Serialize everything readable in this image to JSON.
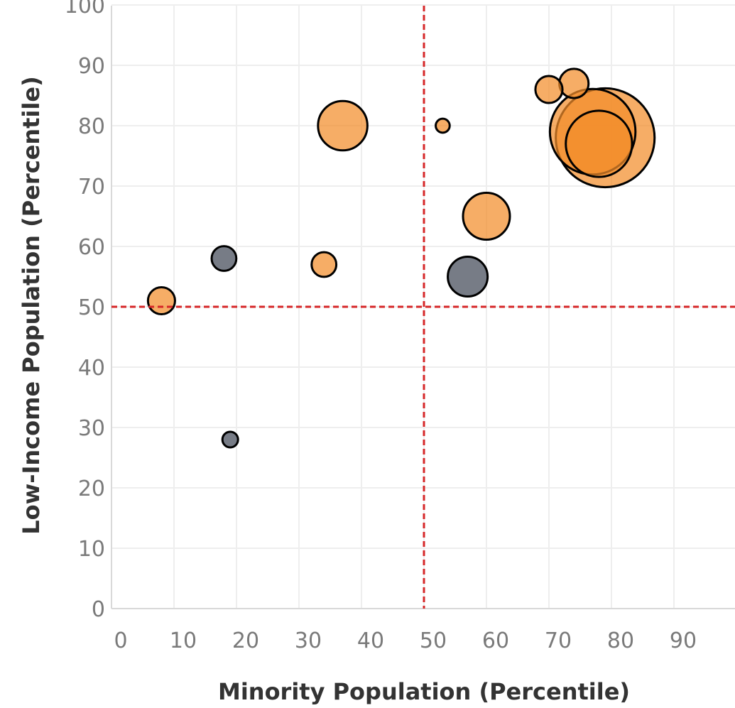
{
  "chart_data": {
    "type": "scatter",
    "title": "",
    "xlabel": "Minority Population (Percentile)",
    "ylabel": "Low-Income Population (Percentile)",
    "xlim": [
      0,
      100
    ],
    "ylim": [
      0,
      100
    ],
    "x_ticks": [
      0,
      10,
      20,
      30,
      40,
      50,
      60,
      70,
      80,
      90
    ],
    "y_ticks": [
      0,
      10,
      20,
      30,
      40,
      50,
      60,
      70,
      80,
      90,
      100
    ],
    "grid": true,
    "reference_lines": {
      "x": 50,
      "y": 50,
      "color": "#d62728",
      "style": "dashed"
    },
    "colors": {
      "orange": "#f28e2b",
      "gray": "#6b717c"
    },
    "points": [
      {
        "x": 8,
        "y": 51,
        "size": 3,
        "color": "orange"
      },
      {
        "x": 18,
        "y": 58,
        "size": 2.5,
        "color": "gray"
      },
      {
        "x": 19,
        "y": 28,
        "size": 1,
        "color": "gray"
      },
      {
        "x": 34,
        "y": 57,
        "size": 2.5,
        "color": "orange"
      },
      {
        "x": 37,
        "y": 80,
        "size": 10,
        "color": "orange"
      },
      {
        "x": 53,
        "y": 80,
        "size": 0.8,
        "color": "orange"
      },
      {
        "x": 57,
        "y": 55,
        "size": 6.5,
        "color": "gray"
      },
      {
        "x": 60,
        "y": 65,
        "size": 9,
        "color": "orange"
      },
      {
        "x": 70,
        "y": 86,
        "size": 3,
        "color": "orange"
      },
      {
        "x": 74,
        "y": 87,
        "size": 3.5,
        "color": "orange"
      },
      {
        "x": 77,
        "y": 79,
        "size": 30,
        "color": "orange"
      },
      {
        "x": 78,
        "y": 77,
        "size": 18,
        "color": "orange"
      },
      {
        "x": 79,
        "y": 78,
        "size": 40,
        "color": "orange"
      }
    ]
  }
}
